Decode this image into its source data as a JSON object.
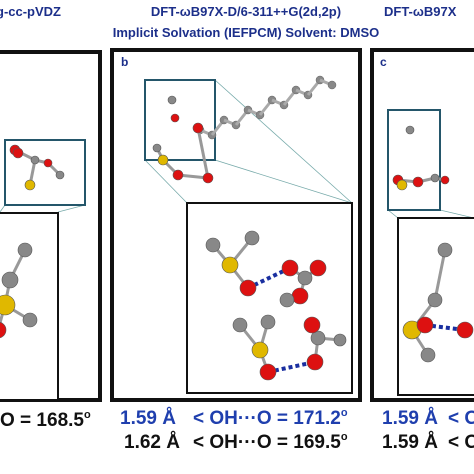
{
  "header": {
    "left": "g-cc-pVDZ",
    "center": "DFT-ωB97X-D/6-311++G(2d,2p)",
    "right": "DFT-ωB97X",
    "subtitle": "Implicit Solvation (IEFPCM) Solvent: DMSO"
  },
  "panels": {
    "middle": "b",
    "right": "c"
  },
  "results": {
    "left": {
      "angle": "O = 168.5",
      "degree": "o"
    },
    "middle": [
      {
        "distance": "1.59 Å",
        "angle": "< OH···O = 171.2",
        "degree": "o"
      },
      {
        "distance": "1.62 Å",
        "angle": "< OH···O = 169.5",
        "degree": "o"
      }
    ],
    "right": [
      {
        "distance": "1.59 Å",
        "angle": "< O"
      },
      {
        "distance": "1.59 Å",
        "angle": "< O"
      }
    ]
  }
}
